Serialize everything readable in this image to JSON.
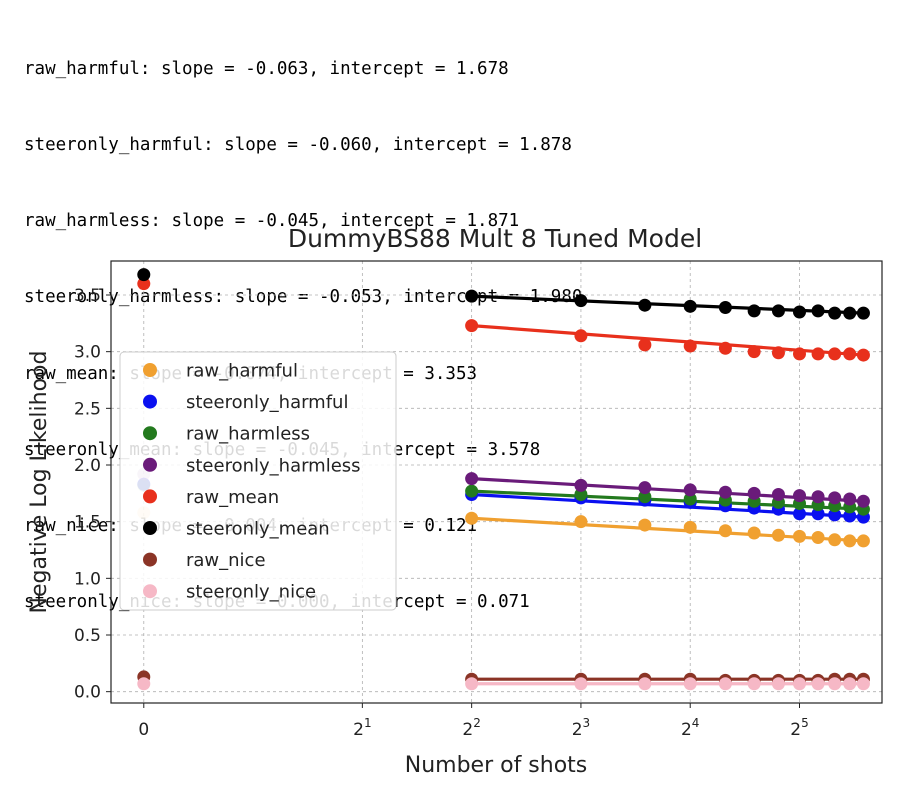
{
  "output_lines": [
    "raw_harmful: slope = -0.063, intercept = 1.678",
    "steeronly_harmful: slope = -0.060, intercept = 1.878",
    "raw_harmless: slope = -0.045, intercept = 1.871",
    "steeronly_harmless: slope = -0.053, intercept = 1.980",
    "raw_mean: slope = -0.074, intercept = 3.353",
    "steeronly_mean: slope = -0.045, intercept = 3.578",
    "raw_nice: slope = -0.004, intercept = 0.121",
    "steeronly_nice: slope = 0.000, intercept = 0.071"
  ],
  "chart_data": {
    "type": "scatter",
    "title": "DummyBS88 Mult 8 Tuned Model",
    "xlabel": "Number of shots",
    "ylabel": "Negative Log Likelihood",
    "x_scale": "symlog base 2",
    "xlim": [
      -0.3,
      54
    ],
    "ylim": [
      -0.1,
      3.8
    ],
    "x_ticks": [
      {
        "value": 0,
        "base": "0",
        "exp": ""
      },
      {
        "value": 2,
        "base": "2",
        "exp": "1"
      },
      {
        "value": 4,
        "base": "2",
        "exp": "2"
      },
      {
        "value": 8,
        "base": "2",
        "exp": "3"
      },
      {
        "value": 16,
        "base": "2",
        "exp": "4"
      },
      {
        "value": 32,
        "base": "2",
        "exp": "5"
      }
    ],
    "y_ticks": [
      0.0,
      0.5,
      1.0,
      1.5,
      2.0,
      2.5,
      3.0,
      3.5
    ],
    "y_tick_labels": [
      "0.0",
      "0.5",
      "1.0",
      "1.5",
      "2.0",
      "2.5",
      "3.0",
      "3.5"
    ],
    "grid": true,
    "legend_position": "center-left",
    "x": [
      0,
      4,
      8,
      12,
      16,
      20,
      24,
      28,
      32,
      36,
      40,
      44,
      48
    ],
    "series": [
      {
        "name": "raw_harmful",
        "color": "#f0a030",
        "fit": [
          1.678,
          -0.063
        ],
        "values": [
          1.58,
          1.53,
          1.5,
          1.47,
          1.45,
          1.42,
          1.4,
          1.38,
          1.37,
          1.36,
          1.34,
          1.33,
          1.33
        ]
      },
      {
        "name": "steeronly_harmful",
        "color": "#0a10f0",
        "fit": [
          1.878,
          -0.06
        ],
        "values": [
          1.83,
          1.74,
          1.71,
          1.69,
          1.67,
          1.64,
          1.62,
          1.61,
          1.57,
          1.57,
          1.56,
          1.55,
          1.54
        ]
      },
      {
        "name": "raw_harmless",
        "color": "#237a1e",
        "fit": [
          1.871,
          -0.045
        ],
        "values": [
          1.82,
          1.77,
          1.74,
          1.72,
          1.7,
          1.69,
          1.68,
          1.67,
          1.66,
          1.65,
          1.64,
          1.63,
          1.61
        ]
      },
      {
        "name": "steeronly_harmless",
        "color": "#6a1b7a",
        "fit": [
          1.98,
          -0.053
        ],
        "values": [
          1.92,
          1.88,
          1.82,
          1.8,
          1.78,
          1.76,
          1.75,
          1.74,
          1.73,
          1.72,
          1.71,
          1.7,
          1.68
        ]
      },
      {
        "name": "raw_mean",
        "color": "#e8301c",
        "fit": [
          3.353,
          -0.074
        ],
        "values": [
          3.6,
          3.23,
          3.14,
          3.06,
          3.05,
          3.03,
          3.0,
          2.99,
          2.98,
          2.98,
          2.98,
          2.98,
          2.97
        ]
      },
      {
        "name": "steeronly_mean",
        "color": "#000000",
        "fit": [
          3.578,
          -0.045
        ],
        "values": [
          3.68,
          3.49,
          3.45,
          3.41,
          3.4,
          3.39,
          3.36,
          3.36,
          3.35,
          3.36,
          3.34,
          3.34,
          3.34
        ]
      },
      {
        "name": "raw_nice",
        "color": "#8b3426",
        "fit": [
          0.121,
          -0.004
        ],
        "values": [
          0.13,
          0.11,
          0.11,
          0.11,
          0.11,
          0.1,
          0.1,
          0.1,
          0.1,
          0.1,
          0.11,
          0.11,
          0.11
        ]
      },
      {
        "name": "steeronly_nice",
        "color": "#f6b8c6",
        "fit": [
          0.071,
          0.0
        ],
        "values": [
          0.07,
          0.07,
          0.07,
          0.07,
          0.07,
          0.07,
          0.07,
          0.07,
          0.07,
          0.07,
          0.07,
          0.07,
          0.07
        ]
      }
    ]
  }
}
